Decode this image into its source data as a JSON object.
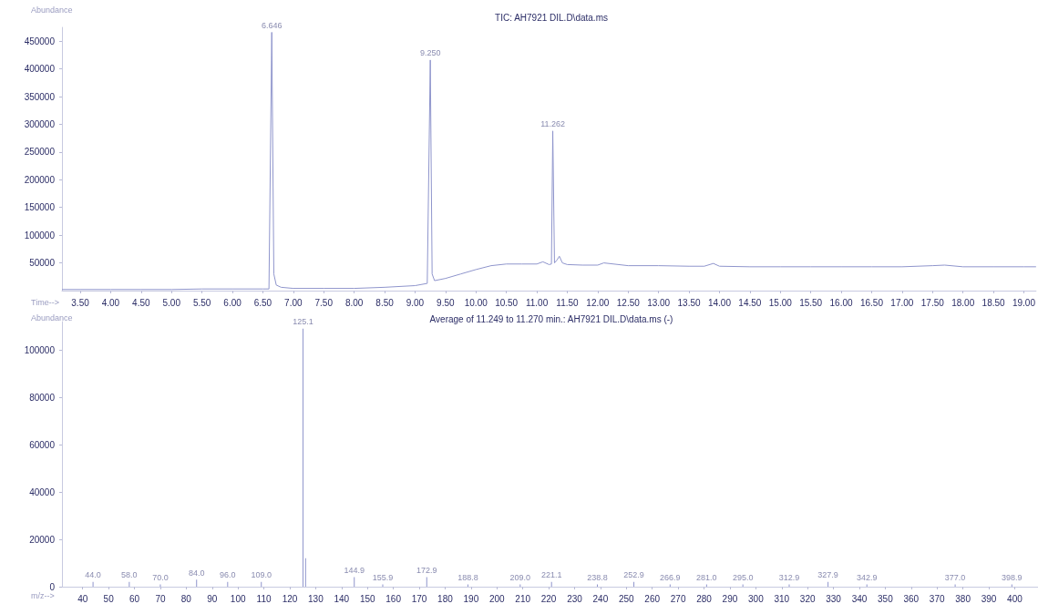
{
  "chart_data": [
    {
      "type": "line",
      "title": "TIC: AH7921 DIL.D\\data.ms",
      "xlabel": "Time-->",
      "ylabel": "Abundance",
      "series": [
        {
          "color": "#8f95cc",
          "x": [
            3.2,
            3.5,
            4.0,
            4.5,
            5.0,
            5.5,
            6.0,
            6.5,
            6.6,
            6.646,
            6.68,
            6.72,
            6.8,
            7.0,
            7.5,
            8.0,
            8.5,
            9.0,
            9.2,
            9.25,
            9.28,
            9.32,
            9.5,
            9.75,
            10.0,
            10.25,
            10.5,
            10.75,
            11.0,
            11.1,
            11.2,
            11.24,
            11.262,
            11.29,
            11.33,
            11.37,
            11.42,
            11.5,
            11.75,
            12.0,
            12.1,
            12.5,
            13.0,
            13.5,
            13.75,
            13.9,
            14.0,
            14.5,
            15.0,
            15.5,
            16.0,
            16.5,
            17.0,
            17.5,
            17.7,
            18.0,
            18.5,
            19.0,
            19.2
          ],
          "values": [
            2000,
            2000,
            2000,
            2000,
            2000,
            3000,
            3000,
            3000,
            3000,
            466000,
            30000,
            10000,
            6000,
            4000,
            4000,
            4000,
            6000,
            9000,
            13000,
            416000,
            30000,
            18000,
            22000,
            30000,
            38000,
            45000,
            48000,
            48000,
            48000,
            52000,
            47000,
            48000,
            288000,
            50000,
            55000,
            62000,
            50000,
            47000,
            46000,
            46000,
            50000,
            45000,
            45000,
            44000,
            44000,
            49000,
            44000,
            43000,
            43000,
            43000,
            43000,
            43000,
            43000,
            45000,
            46000,
            43000,
            43000,
            43000,
            43000
          ]
        }
      ],
      "xlim": [
        3.2,
        19.2
      ],
      "xticks": [
        {
          "value": 3.5,
          "label": "3.50"
        },
        {
          "value": 4,
          "label": "4.00"
        },
        {
          "value": 4.5,
          "label": "4.50"
        },
        {
          "value": 5,
          "label": "5.00"
        },
        {
          "value": 5.5,
          "label": "5.50"
        },
        {
          "value": 6,
          "label": "6.00"
        },
        {
          "value": 6.5,
          "label": "6.50"
        },
        {
          "value": 7,
          "label": "7.00"
        },
        {
          "value": 7.5,
          "label": "7.50"
        },
        {
          "value": 8,
          "label": "8.00"
        },
        {
          "value": 8.5,
          "label": "8.50"
        },
        {
          "value": 9,
          "label": "9.00"
        },
        {
          "value": 9.5,
          "label": "9.50"
        },
        {
          "value": 10,
          "label": "10.00"
        },
        {
          "value": 10.5,
          "label": "10.50"
        },
        {
          "value": 11,
          "label": "11.00"
        },
        {
          "value": 11.5,
          "label": "11.50"
        },
        {
          "value": 12,
          "label": "12.00"
        },
        {
          "value": 12.5,
          "label": "12.50"
        },
        {
          "value": 13,
          "label": "13.00"
        },
        {
          "value": 13.5,
          "label": "13.50"
        },
        {
          "value": 14,
          "label": "14.00"
        },
        {
          "value": 14.5,
          "label": "14.50"
        },
        {
          "value": 15,
          "label": "15.00"
        },
        {
          "value": 15.5,
          "label": "15.50"
        },
        {
          "value": 16,
          "label": "16.00"
        },
        {
          "value": 16.5,
          "label": "16.50"
        },
        {
          "value": 17,
          "label": "17.00"
        },
        {
          "value": 17.5,
          "label": "17.50"
        },
        {
          "value": 18,
          "label": "18.00"
        },
        {
          "value": 18.5,
          "label": "18.50"
        },
        {
          "value": 19,
          "label": "19.00"
        }
      ],
      "ylim": [
        0,
        475000
      ],
      "yticks": [
        50000,
        100000,
        150000,
        200000,
        250000,
        300000,
        350000,
        400000,
        450000
      ],
      "annotations": [
        {
          "text": "6.646",
          "x": 6.646,
          "y": 466000
        },
        {
          "text": "9.250",
          "x": 9.25,
          "y": 416000
        },
        {
          "text": "11.262",
          "x": 11.262,
          "y": 288000
        }
      ],
      "grid": false,
      "marker": "none",
      "line_style": "solid"
    },
    {
      "type": "bar",
      "title": "Average of 11.249 to 11.270 min.: AH7921 DIL.D\\data.ms (-)",
      "xlabel": "m/z-->",
      "ylabel": "Abundance",
      "series": [
        {
          "color": "#8f95cc",
          "x": [
            44,
            58,
            70,
            84,
            96,
            109,
            125.1,
            126.1,
            144.9,
            155.9,
            172.9,
            188.8,
            209,
            221.1,
            238.8,
            252.9,
            266.9,
            281,
            295,
            312.9,
            327.9,
            342.9,
            377,
            398.9
          ],
          "values": [
            2000,
            2000,
            1000,
            3000,
            2000,
            2000,
            109000,
            12000,
            4000,
            1000,
            4000,
            1000,
            1000,
            2000,
            1000,
            2000,
            1000,
            1000,
            1000,
            1000,
            2000,
            1000,
            1000,
            1000
          ]
        }
      ],
      "xlim": [
        32,
        409
      ],
      "xticks": [
        40,
        50,
        60,
        70,
        80,
        90,
        100,
        110,
        120,
        130,
        140,
        150,
        160,
        170,
        180,
        190,
        200,
        210,
        220,
        230,
        240,
        250,
        260,
        270,
        280,
        290,
        300,
        310,
        320,
        330,
        340,
        350,
        360,
        370,
        380,
        390,
        400
      ],
      "ylim": [
        0,
        112000
      ],
      "yticks": [
        0,
        20000,
        40000,
        60000,
        80000,
        100000
      ],
      "annotations": [
        {
          "text": "44.0",
          "x": 44,
          "y": 2000
        },
        {
          "text": "58.0",
          "x": 58,
          "y": 2000
        },
        {
          "text": "70.0",
          "x": 70,
          "y": 1000
        },
        {
          "text": "84.0",
          "x": 84,
          "y": 3000
        },
        {
          "text": "96.0",
          "x": 96,
          "y": 2000
        },
        {
          "text": "109.0",
          "x": 109,
          "y": 2000
        },
        {
          "text": "125.1",
          "x": 125.1,
          "y": 109000
        },
        {
          "text": "144.9",
          "x": 144.9,
          "y": 4000
        },
        {
          "text": "155.9",
          "x": 155.9,
          "y": 1000
        },
        {
          "text": "172.9",
          "x": 172.9,
          "y": 4000
        },
        {
          "text": "188.8",
          "x": 188.8,
          "y": 1000
        },
        {
          "text": "209.0",
          "x": 209,
          "y": 1000
        },
        {
          "text": "221.1",
          "x": 221.1,
          "y": 2000
        },
        {
          "text": "238.8",
          "x": 238.8,
          "y": 1000
        },
        {
          "text": "252.9",
          "x": 252.9,
          "y": 2000
        },
        {
          "text": "266.9",
          "x": 266.9,
          "y": 1000
        },
        {
          "text": "281.0",
          "x": 281,
          "y": 1000
        },
        {
          "text": "295.0",
          "x": 295,
          "y": 1000
        },
        {
          "text": "312.9",
          "x": 312.9,
          "y": 1000
        },
        {
          "text": "327.9",
          "x": 327.9,
          "y": 2000
        },
        {
          "text": "342.9",
          "x": 342.9,
          "y": 1000
        },
        {
          "text": "377.0",
          "x": 377,
          "y": 1000
        },
        {
          "text": "398.9",
          "x": 398.9,
          "y": 1000
        }
      ],
      "grid": false
    }
  ]
}
